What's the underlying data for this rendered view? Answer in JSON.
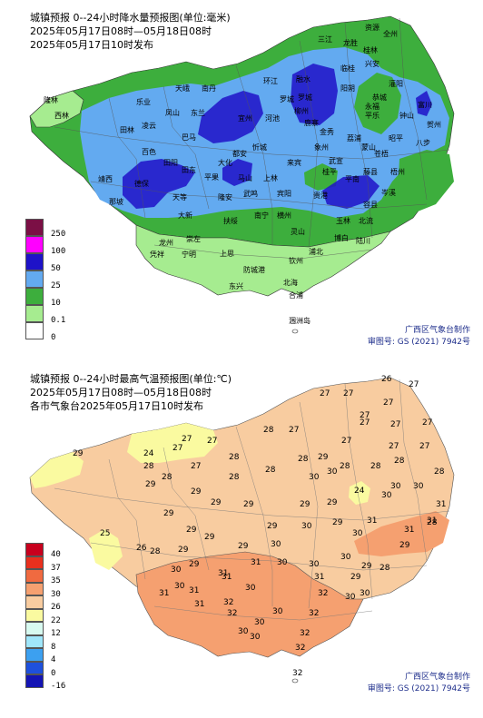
{
  "rain": {
    "title_line1": "城镇预报 0--24小时降水量预报图(单位:毫米)",
    "title_line2": "2025年05月17日08时—05月18日08时",
    "title_line3": "2025年05月17日10时发布",
    "legend": [
      {
        "label": "250",
        "color": "#7b0f45"
      },
      {
        "label": "100",
        "color": "#ff00ff"
      },
      {
        "label": "50",
        "color": "#1e12c8"
      },
      {
        "label": "25",
        "color": "#63aaf0"
      },
      {
        "label": "10",
        "color": "#3dae3d"
      },
      {
        "label": "0.1",
        "color": "#a6ec90"
      },
      {
        "label": "0",
        "color": "#ffffff"
      }
    ],
    "credit_line1": "广西区气象台制作",
    "credit_line2": "审图号: GS (2021) 7942号",
    "cities": [
      "隆林",
      "西林",
      "乐业",
      "天峨",
      "南丹",
      "凤山",
      "东兰",
      "巴马",
      "田林",
      "凌云",
      "百色",
      "田阳",
      "田东",
      "德保",
      "靖西",
      "那坡",
      "大新",
      "天等",
      "平果",
      "隆安",
      "马山",
      "都安",
      "大化",
      "宜州",
      "河池",
      "环江",
      "罗城",
      "融水",
      "三江",
      "龙胜",
      "资源",
      "全州",
      "兴安",
      "灌阳",
      "恭城",
      "平乐",
      "荔浦",
      "阳朔",
      "富川",
      "钟山",
      "贺州",
      "昭平",
      "蒙山",
      "金秀",
      "象州",
      "来宾",
      "柳州",
      "鹿寨",
      "忻城",
      "上林",
      "宾阳",
      "武鸣",
      "南宁",
      "横州",
      "贵港",
      "桂平",
      "平南",
      "藤县",
      "苍梧",
      "梧州",
      "岑溪",
      "容县",
      "北流",
      "玉林",
      "博白",
      "陆川",
      "灵山",
      "浦北",
      "钦州",
      "防城港",
      "东兴",
      "北海",
      "合浦",
      "涠洲岛",
      "凭祥",
      "宁明",
      "龙州",
      "崇左",
      "扶绥",
      "上思",
      "永福",
      "临桂",
      "桂林",
      "罗城",
      "武宣",
      "八步"
    ]
  },
  "temp": {
    "title_line1": "城镇预报 0--24小时最高气温预报图(单位:℃)",
    "title_line2": "2025年05月17日08时—05月18日08时",
    "title_line3": "各市气象台2025年05月17日10时发布",
    "legend": [
      {
        "label": "40",
        "color": "#c8001e"
      },
      {
        "label": "37",
        "color": "#e8301e"
      },
      {
        "label": "35",
        "color": "#f06a40"
      },
      {
        "label": "30",
        "color": "#f5a070"
      },
      {
        "label": "26",
        "color": "#f8cca0"
      },
      {
        "label": "22",
        "color": "#fafaa0"
      },
      {
        "label": "12",
        "color": "#d8faf0"
      },
      {
        "label": "8",
        "color": "#a0e6fa"
      },
      {
        "label": "4",
        "color": "#3ca0f0"
      },
      {
        "label": "0",
        "color": "#1e50dc"
      },
      {
        "label": "-16",
        "color": "#1414b4"
      }
    ],
    "credit_line1": "广西区气象台制作",
    "credit_line2": "审图号: GS (2021) 7942号",
    "values": [
      "26",
      "27",
      "27",
      "27",
      "27",
      "27",
      "27",
      "29",
      "24",
      "27",
      "27",
      "27",
      "28",
      "27",
      "27",
      "27",
      "28",
      "28",
      "27",
      "28",
      "29",
      "27",
      "27",
      "28",
      "28",
      "28",
      "28",
      "28",
      "28",
      "28",
      "30",
      "30",
      "24",
      "31",
      "29",
      "25",
      "26",
      "29",
      "29",
      "29",
      "29",
      "29",
      "29",
      "30",
      "30",
      "30",
      "29",
      "29",
      "30",
      "31",
      "29",
      "30",
      "31",
      "29",
      "29",
      "30",
      "29",
      "31",
      "31",
      "31",
      "32",
      "30",
      "30",
      "31",
      "30",
      "30",
      "32",
      "30",
      "29",
      "30",
      "29",
      "30",
      "28",
      "29",
      "28",
      "28",
      "30",
      "30",
      "32",
      "32",
      "32",
      "32",
      "30",
      "30",
      "31",
      "32",
      "30",
      "31",
      "31",
      "31",
      "29",
      "27"
    ]
  }
}
